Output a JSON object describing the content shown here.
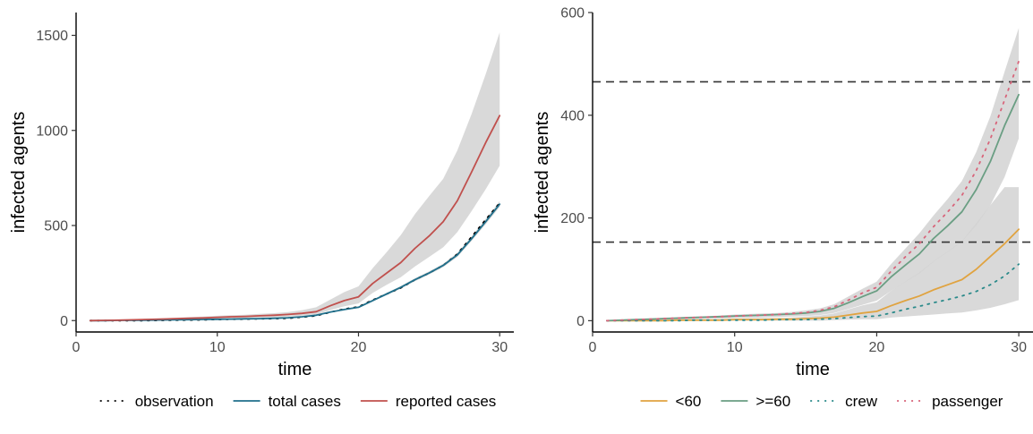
{
  "chart_data": [
    {
      "type": "line",
      "xlabel": "time",
      "ylabel": "infected agents",
      "xlim": [
        0,
        31
      ],
      "ylim": [
        -60,
        1620
      ],
      "xticks": [
        0,
        10,
        20,
        30
      ],
      "yticks": [
        0,
        500,
        1000,
        1500
      ],
      "grid": false,
      "legend_position": "bottom",
      "x": [
        1,
        2,
        3,
        4,
        5,
        6,
        7,
        8,
        9,
        10,
        11,
        12,
        13,
        14,
        15,
        16,
        17,
        18,
        19,
        20,
        21,
        22,
        23,
        24,
        25,
        26,
        27,
        28,
        29,
        30
      ],
      "series": [
        {
          "name": "observation",
          "color": "#000000",
          "style": "dotted",
          "values": [
            0,
            0,
            0,
            0,
            0,
            1,
            2,
            3,
            4,
            6,
            7,
            8,
            9,
            10,
            12,
            18,
            25,
            44,
            61,
            72,
            108,
            140,
            172,
            215,
            250,
            290,
            350,
            440,
            530,
            618
          ]
        },
        {
          "name": "total cases",
          "color": "#1f6f8b",
          "style": "solid",
          "values": [
            0,
            0,
            1,
            1,
            2,
            3,
            4,
            5,
            6,
            7,
            8,
            9,
            10,
            12,
            15,
            20,
            28,
            45,
            58,
            70,
            105,
            140,
            175,
            215,
            250,
            290,
            345,
            430,
            520,
            612
          ],
          "band_lower": [
            0,
            0,
            1,
            1,
            2,
            3,
            4,
            5,
            6,
            7,
            8,
            9,
            10,
            12,
            15,
            20,
            27,
            43,
            55,
            66,
            100,
            134,
            168,
            207,
            242,
            281,
            335,
            418,
            506,
            598
          ],
          "band_upper": [
            1,
            1,
            2,
            2,
            3,
            4,
            5,
            6,
            7,
            8,
            9,
            10,
            11,
            13,
            16,
            21,
            30,
            48,
            62,
            74,
            110,
            146,
            182,
            223,
            259,
            299,
            356,
            442,
            535,
            628
          ]
        },
        {
          "name": "reported cases",
          "color": "#c0504d",
          "style": "solid",
          "values": [
            0,
            1,
            2,
            4,
            6,
            8,
            10,
            12,
            14,
            17,
            20,
            22,
            25,
            28,
            32,
            38,
            47,
            78,
            105,
            125,
            195,
            250,
            305,
            380,
            445,
            520,
            630,
            780,
            935,
            1078
          ],
          "band_lower": [
            0,
            0,
            1,
            2,
            3,
            4,
            5,
            7,
            8,
            10,
            12,
            13,
            15,
            17,
            20,
            25,
            32,
            55,
            75,
            90,
            145,
            188,
            228,
            285,
            335,
            385,
            465,
            575,
            690,
            815
          ],
          "band_upper": [
            1,
            2,
            4,
            6,
            9,
            12,
            15,
            18,
            21,
            25,
            28,
            31,
            35,
            39,
            45,
            55,
            70,
            110,
            150,
            180,
            275,
            360,
            450,
            560,
            655,
            745,
            895,
            1085,
            1295,
            1515
          ]
        }
      ]
    },
    {
      "type": "line",
      "xlabel": "time",
      "ylabel": "infected agents",
      "xlim": [
        0,
        31
      ],
      "ylim": [
        -22,
        600
      ],
      "xticks": [
        0,
        10,
        20,
        30
      ],
      "yticks": [
        0,
        200,
        400,
        600
      ],
      "grid": false,
      "legend_position": "bottom",
      "reference_lines": [
        465,
        153
      ],
      "x": [
        1,
        2,
        3,
        4,
        5,
        6,
        7,
        8,
        9,
        10,
        11,
        12,
        13,
        14,
        15,
        16,
        17,
        18,
        19,
        20,
        21,
        22,
        23,
        24,
        25,
        26,
        27,
        28,
        29,
        30
      ],
      "series": [
        {
          "name": "<60",
          "color": "#e0a340",
          "style": "solid",
          "values": [
            0,
            0,
            0,
            0,
            0,
            1,
            1,
            1,
            1,
            2,
            2,
            2,
            3,
            3,
            4,
            5,
            7,
            11,
            15,
            18,
            29,
            39,
            48,
            60,
            70,
            80,
            100,
            125,
            150,
            178
          ],
          "band_lower": [
            0,
            0,
            0,
            0,
            0,
            0,
            0,
            0,
            0,
            0,
            0,
            0,
            0,
            0,
            0,
            0,
            1,
            2,
            3,
            3,
            6,
            8,
            10,
            12,
            14,
            16,
            20,
            25,
            32,
            40
          ],
          "band_upper": [
            1,
            1,
            1,
            1,
            2,
            2,
            3,
            3,
            3,
            4,
            4,
            5,
            5,
            6,
            8,
            10,
            14,
            22,
            30,
            36,
            58,
            76,
            94,
            116,
            135,
            155,
            190,
            225,
            260,
            260
          ]
        },
        {
          "name": ">=60",
          "color": "#6a9e83",
          "style": "solid",
          "values": [
            0,
            1,
            2,
            3,
            4,
            5,
            6,
            7,
            8,
            9,
            10,
            11,
            12,
            13,
            15,
            18,
            24,
            35,
            47,
            58,
            85,
            108,
            130,
            160,
            185,
            212,
            255,
            310,
            380,
            440
          ],
          "band_lower": [
            0,
            0,
            1,
            1,
            2,
            2,
            3,
            4,
            4,
            5,
            5,
            6,
            7,
            8,
            9,
            11,
            15,
            23,
            31,
            39,
            58,
            75,
            92,
            115,
            134,
            154,
            185,
            225,
            280,
            355
          ],
          "band_upper": [
            1,
            2,
            3,
            4,
            6,
            7,
            8,
            9,
            10,
            12,
            13,
            14,
            15,
            17,
            20,
            24,
            32,
            47,
            62,
            76,
            110,
            140,
            170,
            205,
            237,
            272,
            328,
            398,
            485,
            570
          ]
        },
        {
          "name": "crew",
          "color": "#2a8a8a",
          "style": "dotted",
          "values": [
            0,
            0,
            0,
            0,
            0,
            0,
            1,
            1,
            1,
            1,
            1,
            1,
            2,
            2,
            2,
            3,
            4,
            6,
            8,
            9,
            15,
            22,
            28,
            35,
            41,
            48,
            57,
            70,
            87,
            110
          ]
        },
        {
          "name": "passenger",
          "color": "#d8647a",
          "style": "dotted",
          "values": [
            0,
            1,
            2,
            3,
            4,
            5,
            6,
            7,
            8,
            9,
            10,
            11,
            12,
            14,
            16,
            20,
            27,
            40,
            54,
            65,
            96,
            124,
            150,
            183,
            212,
            244,
            292,
            354,
            430,
            505
          ]
        }
      ]
    }
  ]
}
